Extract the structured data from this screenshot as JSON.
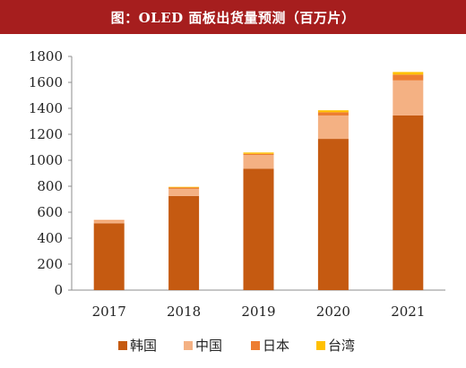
{
  "title": "图：OLED 面板出货量预测（百万片）",
  "chart_data": {
    "type": "bar",
    "stacked": true,
    "categories": [
      "2017",
      "2018",
      "2019",
      "2020",
      "2021"
    ],
    "series": [
      {
        "name": "韩国",
        "color": "#c55a11",
        "values": [
          515,
          725,
          935,
          1165,
          1345
        ]
      },
      {
        "name": "中国",
        "color": "#f4b183",
        "values": [
          20,
          55,
          105,
          180,
          270
        ]
      },
      {
        "name": "日本",
        "color": "#ed7d31",
        "values": [
          5,
          10,
          10,
          25,
          45
        ]
      },
      {
        "name": "台湾",
        "color": "#ffc000",
        "values": [
          0,
          5,
          10,
          15,
          20
        ]
      }
    ],
    "ylim": [
      0,
      1800
    ],
    "yticks": [
      "0",
      "200",
      "400",
      "600",
      "800",
      "1000",
      "1200",
      "1400",
      "1600",
      "1800"
    ],
    "grid": false,
    "legend": "bottom"
  }
}
